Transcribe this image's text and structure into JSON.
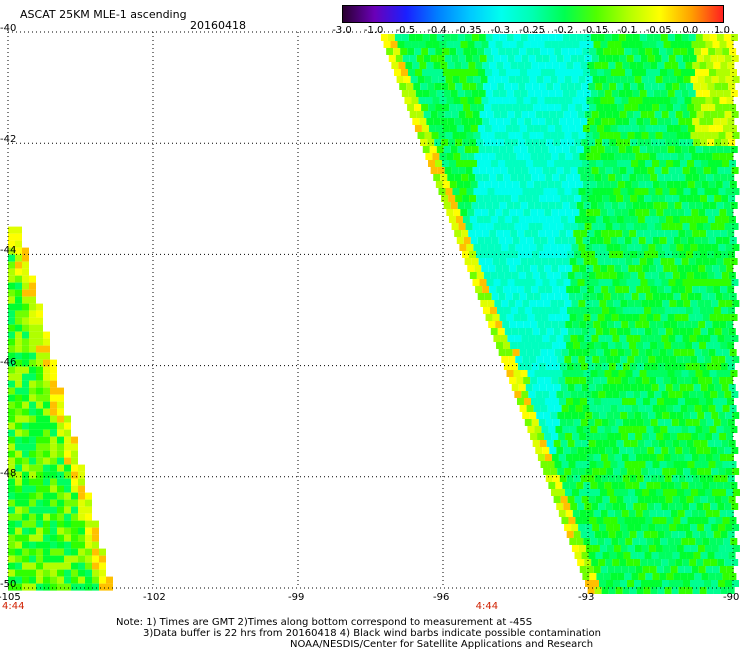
{
  "header": {
    "title": "ASCAT 25KM MLE-1 ascending",
    "date": "20160418"
  },
  "colorbar": {
    "labels": [
      "-3.0",
      "-1.0",
      "-0.5",
      "-0.4",
      "-0.35",
      "-0.3",
      "-0.25",
      "-0.2",
      "-0.15",
      "-0.1",
      "-0.05",
      "0.0",
      "1.0"
    ],
    "colors": [
      "#2a0030",
      "#6a00b8",
      "#1a20ff",
      "#0080ff",
      "#00c8ff",
      "#00ffee",
      "#00ffb0",
      "#00ff50",
      "#50ff00",
      "#b0ff00",
      "#ffff00",
      "#ffa000",
      "#ff2020"
    ]
  },
  "map": {
    "lon_range": [
      -105,
      -90
    ],
    "lat_range": [
      -50,
      -40
    ],
    "lon_ticks": [
      "-105",
      "-102",
      "-99",
      "-96",
      "-93",
      "-90"
    ],
    "lat_ticks": [
      "-40",
      "-42",
      "-44",
      "-46",
      "-48",
      "-50"
    ],
    "time_labels": [
      {
        "text": "4:44",
        "lon": -105
      },
      {
        "text": "4:44",
        "lon": -95.2
      }
    ],
    "swaths": [
      {
        "name": "western-swath",
        "lon_min": -105.0,
        "lat_top_edge": -43.5,
        "lat_bottom_edge": -50.0,
        "lon_top_right": -104.8,
        "lon_bottom_right": -102.9
      },
      {
        "name": "eastern-swath",
        "lon_top_left": -97.3,
        "lon_bottom_left": -93.0,
        "lon_max": -90.0,
        "lat_top": -40.0,
        "lat_bottom": -50.0
      }
    ]
  },
  "notes": {
    "line1": "Note: 1) Times are GMT 2)Times along bottom correspond to measurement at -45S",
    "line2": "3)Data buffer is 22 hrs from 20160418 4) Black wind barbs indicate possible contamination",
    "line3": "NOAA/NESDIS/Center for Satellite Applications and Research"
  }
}
